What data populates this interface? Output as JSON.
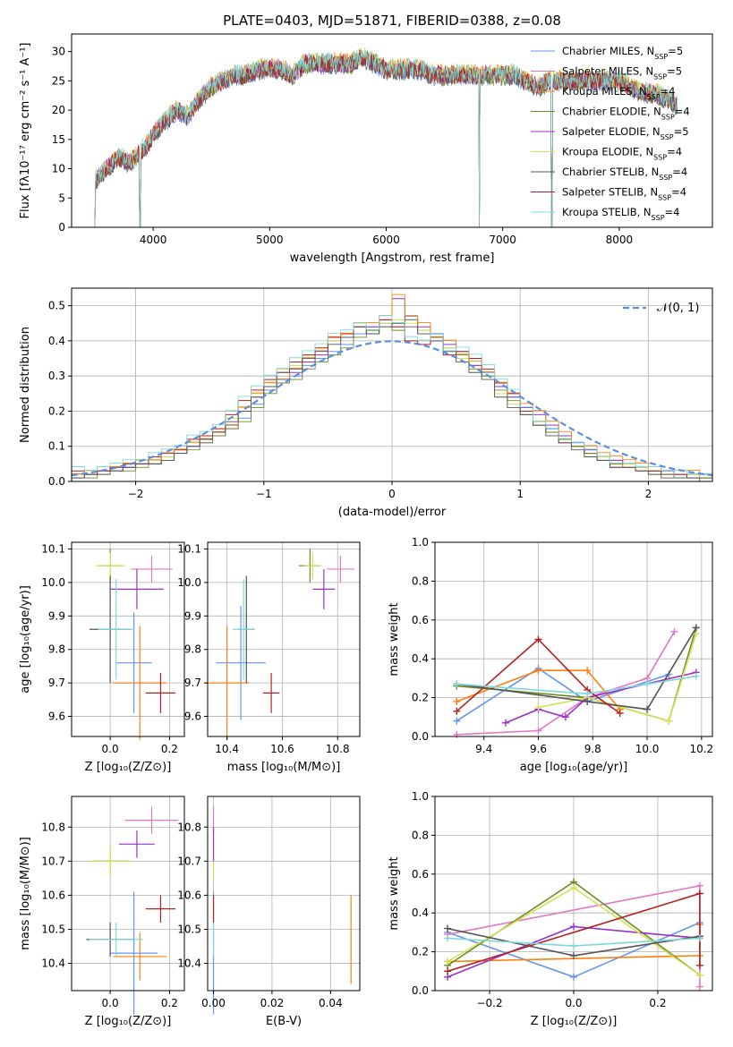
{
  "colors": {
    "chabrier_miles": "#6495ed",
    "salpeter_miles": "#e377c2",
    "kroupa_miles": "#ff7f0e",
    "chabrier_elodie": "#6b8e23",
    "salpeter_elodie": "#9932cc",
    "kroupa_elodie": "#d4e157",
    "chabrier_stelib": "#555555",
    "salpeter_stelib": "#b22222",
    "kroupa_stelib": "#7fd8d8",
    "normal": "#5b8fdc"
  },
  "chart_data": [
    {
      "type": "line",
      "title": "PLATE=0403, MJD=51871, FIBERID=0388, z=0.08",
      "xlabel": "wavelength [Angstrom, rest frame]",
      "ylabel": "Flux [fλ10⁻¹⁷ erg cm⁻² s⁻¹ A⁻¹]",
      "xlim": [
        3300,
        8800
      ],
      "ylim": [
        0,
        33
      ],
      "xticks": [
        "4000",
        "5000",
        "6000",
        "7000",
        "8000"
      ],
      "yticks": [
        "0",
        "5",
        "10",
        "15",
        "20",
        "25",
        "30"
      ],
      "legend_position": "top-right",
      "legend": [
        "Chabrier MILES, N_SSP=5",
        "Salpeter MILES, N_SSP=5",
        "Kroupa MILES, N_SSP=4",
        "Chabrier ELODIE, N_SSP=4",
        "Salpeter ELODIE, N_SSP=5",
        "Kroupa ELODIE, N_SSP=4",
        "Chabrier STELIB, N_SSP=4",
        "Salpeter STELIB, N_SSP=4",
        "Kroupa STELIB, N_SSP=4"
      ],
      "spectrum_envelope": {
        "wavelength": [
          3500,
          3600,
          3700,
          3800,
          3900,
          3950,
          4000,
          4100,
          4200,
          4300,
          4400,
          4500,
          4600,
          4700,
          4800,
          4900,
          5000,
          5100,
          5200,
          5300,
          5400,
          5500,
          5600,
          5700,
          5800,
          5900,
          6000,
          6100,
          6200,
          6300,
          6400,
          6500,
          6600,
          6700,
          6800,
          6900,
          7000,
          7100,
          7200,
          7300,
          7400,
          7500,
          7600,
          7700,
          7800,
          7900,
          8000,
          8100,
          8200,
          8300,
          8400,
          8500
        ],
        "flux": [
          8,
          10,
          12,
          11,
          13,
          14,
          16,
          18,
          20,
          19,
          22,
          24,
          25,
          26,
          26,
          27,
          27,
          27,
          26,
          28,
          28,
          28,
          28,
          28,
          29,
          28,
          27,
          27,
          27,
          27,
          26,
          26,
          26,
          26,
          26,
          26,
          26,
          26,
          25,
          24,
          25,
          25,
          25,
          25,
          25,
          25,
          25,
          24,
          23,
          23,
          22,
          21
        ],
        "gaps_to_zero": [
          3500,
          3900,
          6800,
          7420
        ]
      }
    },
    {
      "type": "histogram",
      "xlabel": "(data-model)/error",
      "ylabel": "Normed distribution",
      "xlim": [
        -2.5,
        2.5
      ],
      "ylim": [
        0,
        0.55
      ],
      "xticks": [
        "−2",
        "−1",
        "0",
        "1",
        "2"
      ],
      "yticks": [
        "0.0",
        "0.1",
        "0.2",
        "0.3",
        "0.4",
        "0.5"
      ],
      "legend": [
        "𝒩(0, 1)"
      ],
      "legend_position": "top-right",
      "bin_width": 0.1,
      "bin_start": -2.5,
      "series": [
        {
          "values": [
            0.02,
            0.02,
            0.03,
            0.04,
            0.04,
            0.05,
            0.06,
            0.07,
            0.09,
            0.1,
            0.12,
            0.14,
            0.16,
            0.18,
            0.22,
            0.26,
            0.29,
            0.3,
            0.33,
            0.35,
            0.37,
            0.39,
            0.42,
            0.44,
            0.45,
            0.44,
            0.47,
            0.43,
            0.42,
            0.38,
            0.37,
            0.33,
            0.31,
            0.27,
            0.24,
            0.2,
            0.17,
            0.15,
            0.13,
            0.11,
            0.09,
            0.07,
            0.06,
            0.05,
            0.04,
            0.03,
            0.03,
            0.02,
            0.02,
            0.02
          ]
        },
        {
          "values": [
            0.01,
            0.02,
            0.03,
            0.03,
            0.04,
            0.05,
            0.05,
            0.07,
            0.08,
            0.1,
            0.11,
            0.13,
            0.15,
            0.2,
            0.24,
            0.27,
            0.28,
            0.31,
            0.34,
            0.36,
            0.4,
            0.41,
            0.44,
            0.44,
            0.46,
            0.52,
            0.46,
            0.44,
            0.4,
            0.39,
            0.35,
            0.33,
            0.3,
            0.27,
            0.24,
            0.21,
            0.19,
            0.16,
            0.13,
            0.1,
            0.09,
            0.07,
            0.06,
            0.05,
            0.04,
            0.03,
            0.02,
            0.02,
            0.02,
            0.01
          ]
        },
        {
          "values": [
            0.02,
            0.03,
            0.03,
            0.04,
            0.05,
            0.06,
            0.06,
            0.07,
            0.09,
            0.11,
            0.13,
            0.15,
            0.18,
            0.21,
            0.25,
            0.28,
            0.32,
            0.33,
            0.36,
            0.38,
            0.4,
            0.42,
            0.45,
            0.43,
            0.45,
            0.46,
            0.45,
            0.43,
            0.41,
            0.38,
            0.35,
            0.32,
            0.3,
            0.25,
            0.22,
            0.2,
            0.17,
            0.14,
            0.12,
            0.1,
            0.08,
            0.07,
            0.05,
            0.05,
            0.04,
            0.03,
            0.02,
            0.02,
            0.02,
            0.01
          ]
        },
        {
          "values": [
            0.03,
            0.02,
            0.03,
            0.04,
            0.05,
            0.05,
            0.07,
            0.08,
            0.09,
            0.12,
            0.13,
            0.15,
            0.19,
            0.23,
            0.26,
            0.29,
            0.31,
            0.34,
            0.36,
            0.38,
            0.41,
            0.42,
            0.44,
            0.42,
            0.46,
            0.44,
            0.4,
            0.39,
            0.41,
            0.36,
            0.37,
            0.35,
            0.32,
            0.28,
            0.25,
            0.2,
            0.16,
            0.14,
            0.11,
            0.1,
            0.08,
            0.06,
            0.04,
            0.04,
            0.03,
            0.03,
            0.02,
            0.02,
            0.01,
            0.01
          ]
        }
      ],
      "normal_curve": {
        "mu": 0,
        "sigma": 1
      }
    },
    {
      "type": "scatter",
      "xlabel": "Z [log₁₀(Z/Z⊙)]",
      "ylabel": "age  [log₁₀(age/yr)]",
      "xlim": [
        -0.13,
        0.25
      ],
      "ylim": [
        9.54,
        10.12
      ],
      "xticks": [
        "0.0",
        "0.2"
      ],
      "yticks": [
        "9.6",
        "9.7",
        "9.8",
        "9.9",
        "10.0",
        "10.1"
      ],
      "points": [
        {
          "x": 0.08,
          "y": 9.76,
          "xerr": 0.06,
          "yerr": 0.15,
          "c": "chabrier_miles"
        },
        {
          "x": 0.14,
          "y": 10.04,
          "xerr": 0.07,
          "yerr": 0.04,
          "c": "salpeter_miles"
        },
        {
          "x": 0.1,
          "y": 9.7,
          "xerr": 0.09,
          "yerr": 0.17,
          "c": "kroupa_miles"
        },
        {
          "x": 0.0,
          "y": 10.05,
          "xerr": 0.04,
          "yerr": 0.05,
          "c": "chabrier_elodie"
        },
        {
          "x": 0.09,
          "y": 9.98,
          "xerr": 0.09,
          "yerr": 0.06,
          "c": "salpeter_elodie"
        },
        {
          "x": 0.0,
          "y": 10.05,
          "xerr": 0.05,
          "yerr": 0.04,
          "c": "kroupa_elodie"
        },
        {
          "x": 0.0,
          "y": 9.86,
          "xerr": 0.07,
          "yerr": 0.16,
          "c": "chabrier_stelib"
        },
        {
          "x": 0.17,
          "y": 9.67,
          "xerr": 0.05,
          "yerr": 0.06,
          "c": "salpeter_stelib"
        },
        {
          "x": 0.02,
          "y": 9.86,
          "xerr": 0.06,
          "yerr": 0.15,
          "c": "kroupa_stelib"
        }
      ]
    },
    {
      "type": "scatter",
      "xlabel": "mass [log₁₀(M/M⊙)]",
      "ylabel": "",
      "xlim": [
        10.33,
        10.88
      ],
      "ylim": [
        9.54,
        10.12
      ],
      "xticks": [
        "10.4",
        "10.6",
        "10.8"
      ],
      "yticks": [
        "9.6",
        "9.7",
        "9.8",
        "9.9",
        "10.0",
        "10.1"
      ],
      "points": [
        {
          "x": 10.45,
          "y": 9.76,
          "xerr": 0.09,
          "yerr": 0.17,
          "c": "chabrier_miles"
        },
        {
          "x": 10.81,
          "y": 10.04,
          "xerr": 0.05,
          "yerr": 0.04,
          "c": "salpeter_miles"
        },
        {
          "x": 10.4,
          "y": 9.7,
          "xerr": 0.08,
          "yerr": 0.17,
          "c": "kroupa_miles"
        },
        {
          "x": 10.7,
          "y": 10.05,
          "xerr": 0.04,
          "yerr": 0.05,
          "c": "chabrier_elodie"
        },
        {
          "x": 10.75,
          "y": 9.98,
          "xerr": 0.04,
          "yerr": 0.06,
          "c": "salpeter_elodie"
        },
        {
          "x": 10.71,
          "y": 10.05,
          "xerr": 0.03,
          "yerr": 0.04,
          "c": "kroupa_elodie"
        },
        {
          "x": 10.47,
          "y": 9.86,
          "xerr": 0.03,
          "yerr": 0.16,
          "c": "chabrier_stelib"
        },
        {
          "x": 10.56,
          "y": 9.67,
          "xerr": 0.03,
          "yerr": 0.06,
          "c": "salpeter_stelib"
        },
        {
          "x": 10.46,
          "y": 9.86,
          "xerr": 0.04,
          "yerr": 0.15,
          "c": "kroupa_stelib"
        }
      ]
    },
    {
      "type": "line",
      "xlabel": "age  [log₁₀(age/yr)]",
      "ylabel": "mass weight",
      "xlim": [
        9.22,
        10.24
      ],
      "ylim": [
        0,
        1.0
      ],
      "xticks": [
        "9.4",
        "9.6",
        "9.8",
        "10.0",
        "10.2"
      ],
      "yticks": [
        "0.0",
        "0.2",
        "0.4",
        "0.6",
        "0.8",
        "1.0"
      ],
      "series": [
        {
          "c": "chabrier_miles",
          "x": [
            9.3,
            9.6,
            9.78,
            10.08
          ],
          "y": [
            0.08,
            0.35,
            0.18,
            0.32
          ]
        },
        {
          "c": "salpeter_miles",
          "x": [
            9.3,
            9.6,
            9.78,
            10.0,
            10.1
          ],
          "y": [
            0.01,
            0.03,
            0.2,
            0.3,
            0.54
          ]
        },
        {
          "c": "kroupa_miles",
          "x": [
            9.3,
            9.6,
            9.78,
            9.9
          ],
          "y": [
            0.18,
            0.34,
            0.34,
            0.14
          ]
        },
        {
          "c": "chabrier_elodie",
          "x": [
            9.3,
            9.78,
            10.08,
            10.18
          ],
          "y": [
            0.26,
            0.2,
            0.08,
            0.56
          ]
        },
        {
          "c": "salpeter_elodie",
          "x": [
            9.48,
            9.6,
            9.7,
            9.78,
            10.18
          ],
          "y": [
            0.07,
            0.14,
            0.1,
            0.2,
            0.33
          ]
        },
        {
          "c": "kroupa_elodie",
          "x": [
            9.6,
            9.78,
            10.08,
            10.18
          ],
          "y": [
            0.15,
            0.2,
            0.08,
            0.53
          ]
        },
        {
          "c": "chabrier_stelib",
          "x": [
            9.3,
            9.78,
            10.0,
            10.18
          ],
          "y": [
            0.27,
            0.18,
            0.14,
            0.56
          ]
        },
        {
          "c": "salpeter_stelib",
          "x": [
            9.3,
            9.6,
            9.78,
            9.9
          ],
          "y": [
            0.13,
            0.5,
            0.24,
            0.12
          ]
        },
        {
          "c": "kroupa_stelib",
          "x": [
            9.3,
            9.78,
            10.0,
            10.18
          ],
          "y": [
            0.27,
            0.22,
            0.27,
            0.31
          ]
        }
      ]
    },
    {
      "type": "scatter",
      "xlabel": "Z [log₁₀(Z/Z⊙)]",
      "ylabel": "mass [log₁₀(M/M⊙)]",
      "xlim": [
        -0.13,
        0.25
      ],
      "ylim": [
        10.32,
        10.89
      ],
      "xticks": [
        "0.0",
        "0.2"
      ],
      "yticks": [
        "10.4",
        "10.5",
        "10.6",
        "10.7",
        "10.8"
      ],
      "points": [
        {
          "x": 0.08,
          "y": 10.43,
          "xerr": 0.08,
          "yerr": 0.18,
          "c": "chabrier_miles"
        },
        {
          "x": 0.14,
          "y": 10.82,
          "xerr": 0.09,
          "yerr": 0.04,
          "c": "salpeter_miles"
        },
        {
          "x": 0.1,
          "y": 10.42,
          "xerr": 0.09,
          "yerr": 0.07,
          "c": "kroupa_miles"
        },
        {
          "x": 0.0,
          "y": 10.7,
          "xerr": 0.06,
          "yerr": 0.04,
          "c": "chabrier_elodie"
        },
        {
          "x": 0.09,
          "y": 10.75,
          "xerr": 0.06,
          "yerr": 0.04,
          "c": "salpeter_elodie"
        },
        {
          "x": 0.0,
          "y": 10.7,
          "xerr": 0.07,
          "yerr": 0.04,
          "c": "kroupa_elodie"
        },
        {
          "x": 0.0,
          "y": 10.47,
          "xerr": 0.08,
          "yerr": 0.05,
          "c": "chabrier_stelib"
        },
        {
          "x": 0.17,
          "y": 10.56,
          "xerr": 0.05,
          "yerr": 0.04,
          "c": "salpeter_stelib"
        },
        {
          "x": 0.02,
          "y": 10.47,
          "xerr": 0.09,
          "yerr": 0.05,
          "c": "kroupa_stelib"
        }
      ]
    },
    {
      "type": "scatter",
      "xlabel": "E(B-V)",
      "ylabel": "",
      "xlim": [
        -0.002,
        0.05
      ],
      "ylim": [
        10.32,
        10.89
      ],
      "xticks": [
        "0.00",
        "0.02",
        "0.04"
      ],
      "yticks": [
        "10.4",
        "10.5",
        "10.6",
        "10.7",
        "10.8"
      ],
      "points": [
        {
          "x": 0.0,
          "y": 10.43,
          "xerr": 0,
          "yerr": 0.18,
          "c": "chabrier_miles"
        },
        {
          "x": 0.0,
          "y": 10.82,
          "xerr": 0,
          "yerr": 0.04,
          "c": "salpeter_miles"
        },
        {
          "x": 0.047,
          "y": 10.47,
          "xerr": 0,
          "yerr": 0.13,
          "c": "kroupa_miles"
        },
        {
          "x": 0.0,
          "y": 10.7,
          "xerr": 0,
          "yerr": 0.06,
          "c": "kroupa_elodie"
        },
        {
          "x": 0.0,
          "y": 10.75,
          "xerr": 0,
          "yerr": 0.05,
          "c": "salpeter_elodie"
        },
        {
          "x": 0.0,
          "y": 10.56,
          "xerr": 0,
          "yerr": 0.04,
          "c": "salpeter_stelib"
        },
        {
          "x": 0.0,
          "y": 10.47,
          "xerr": 0,
          "yerr": 0.05,
          "c": "kroupa_stelib"
        }
      ]
    },
    {
      "type": "line",
      "xlabel": "Z [log₁₀(Z/Z⊙)]",
      "ylabel": "mass weight",
      "xlim": [
        -0.33,
        0.33
      ],
      "ylim": [
        0,
        1.0
      ],
      "xticks": [
        "−0.2",
        "0.0",
        "0.2"
      ],
      "yticks": [
        "0.0",
        "0.2",
        "0.4",
        "0.6",
        "0.8",
        "1.0"
      ],
      "series": [
        {
          "c": "chabrier_miles",
          "x": [
            -0.3,
            0.0,
            0.3
          ],
          "y": [
            0.3,
            0.07,
            0.35
          ]
        },
        {
          "c": "salpeter_miles",
          "x": [
            -0.3,
            0.3,
            0.3
          ],
          "y": [
            0.29,
            0.54,
            0.02
          ]
        },
        {
          "c": "kroupa_miles",
          "x": [
            -0.3,
            0.3,
            0.3
          ],
          "y": [
            0.15,
            0.18,
            0.34
          ]
        },
        {
          "c": "chabrier_elodie",
          "x": [
            -0.3,
            0.0,
            0.3
          ],
          "y": [
            0.13,
            0.56,
            0.08
          ]
        },
        {
          "c": "salpeter_elodie",
          "x": [
            -0.3,
            0.0,
            0.3
          ],
          "y": [
            0.07,
            0.33,
            0.27
          ]
        },
        {
          "c": "kroupa_elodie",
          "x": [
            -0.3,
            0.0,
            0.3
          ],
          "y": [
            0.15,
            0.53,
            0.08
          ]
        },
        {
          "c": "chabrier_stelib",
          "x": [
            -0.3,
            0.0,
            0.3
          ],
          "y": [
            0.32,
            0.18,
            0.28
          ]
        },
        {
          "c": "salpeter_stelib",
          "x": [
            -0.3,
            0.3,
            0.3
          ],
          "y": [
            0.1,
            0.5,
            0.13
          ]
        },
        {
          "c": "kroupa_stelib",
          "x": [
            -0.3,
            0.0,
            0.3
          ],
          "y": [
            0.27,
            0.23,
            0.27
          ]
        }
      ]
    }
  ]
}
